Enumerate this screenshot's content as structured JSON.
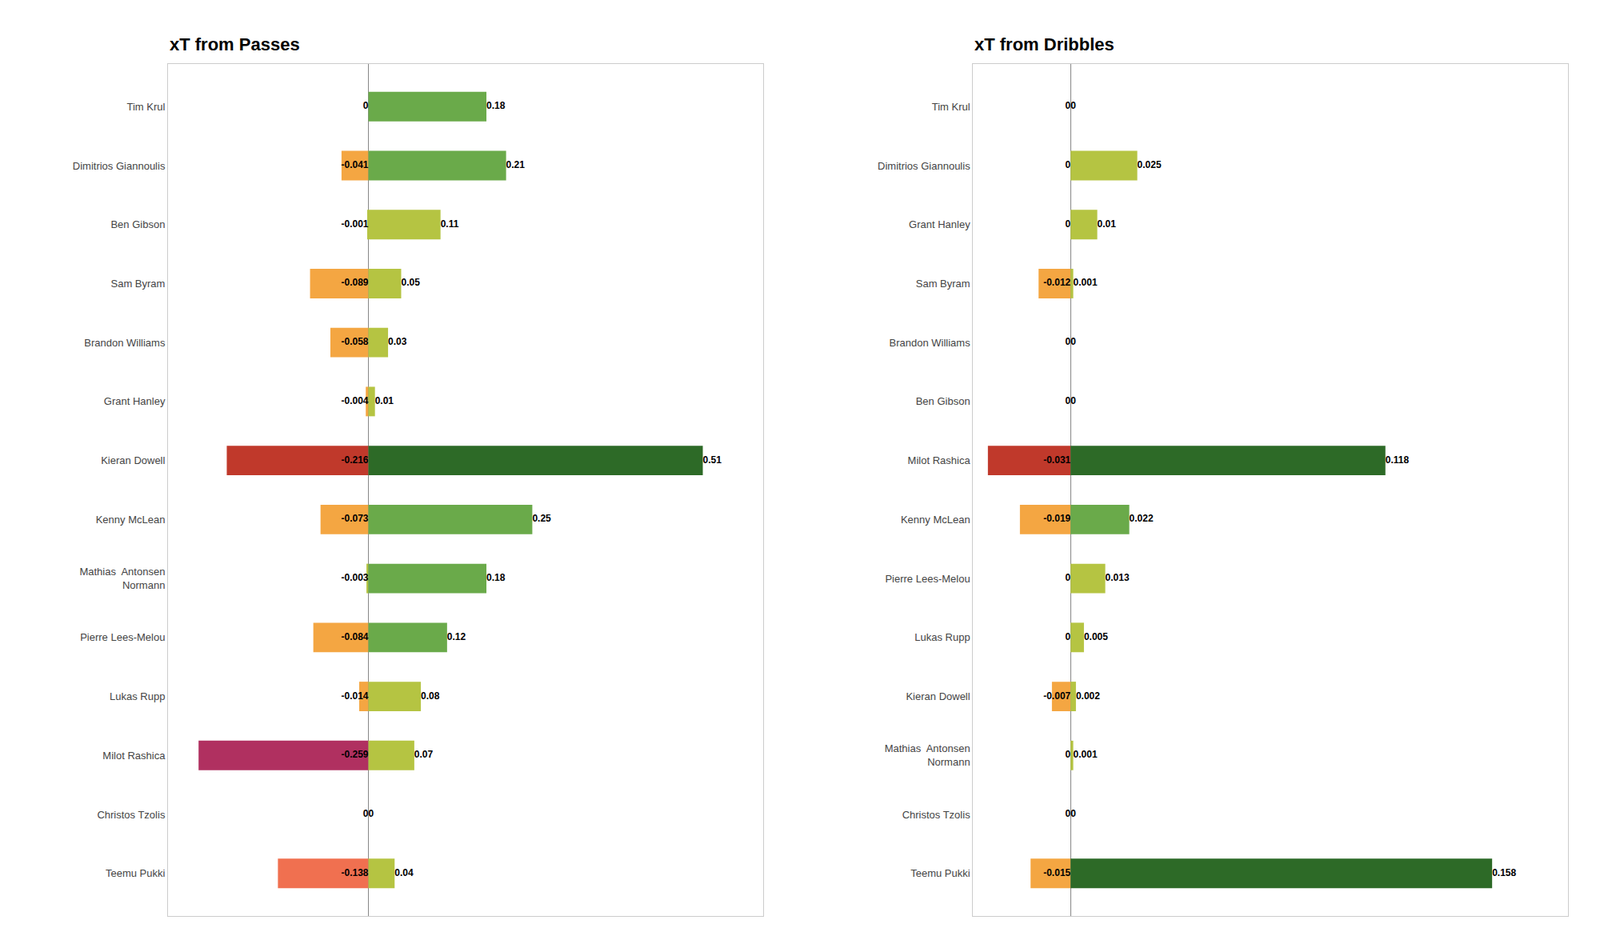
{
  "chart_data": [
    {
      "type": "bar",
      "orientation": "horizontal",
      "title": "xT from Passes",
      "categories": [
        "Tim Krul",
        "Dimitrios Giannoulis",
        "Ben Gibson",
        "Sam Byram",
        "Brandon Williams",
        "Grant Hanley",
        "Kieran Dowell",
        "Kenny McLean",
        "Mathias  Antonsen\nNormann",
        "Pierre Lees-Melou",
        "Lukas Rupp",
        "Milot Rashica",
        "Christos Tzolis",
        "Teemu Pukki"
      ],
      "series": [
        {
          "values": [
            0,
            -0.041,
            -0.001,
            -0.089,
            -0.058,
            -0.004,
            -0.216,
            -0.073,
            -0.003,
            -0.084,
            -0.014,
            -0.259,
            0,
            -0.138
          ],
          "colors": [
            "#6aaa4a",
            "#f4a642",
            "#b5c442",
            "#f4a642",
            "#f4a642",
            "#f4a642",
            "#c0392b",
            "#f4a642",
            "#b5c442",
            "#f4a642",
            "#f4a642",
            "#b03060",
            "#6aaa4a",
            "#f07050"
          ]
        },
        {
          "values": [
            0.18,
            0.21,
            0.11,
            0.05,
            0.03,
            0.01,
            0.51,
            0.25,
            0.18,
            0.12,
            0.08,
            0.07,
            0,
            0.04
          ],
          "colors": [
            "#6aaa4a",
            "#6aaa4a",
            "#b5c442",
            "#b5c442",
            "#b5c442",
            "#b5c442",
            "#2d6a27",
            "#6aaa4a",
            "#6aaa4a",
            "#6aaa4a",
            "#b5c442",
            "#b5c442",
            "#b5c442",
            "#b5c442"
          ]
        }
      ],
      "xlim": [
        -0.30562,
        0.6018
      ],
      "data_labels": true,
      "tick_labels": "y",
      "grid": false
    },
    {
      "type": "bar",
      "orientation": "horizontal",
      "title": "xT from Dribbles",
      "categories": [
        "Tim Krul",
        "Dimitrios Giannoulis",
        "Grant Hanley",
        "Sam Byram",
        "Brandon Williams",
        "Ben Gibson",
        "Milot Rashica",
        "Kenny McLean",
        "Pierre Lees-Melou",
        "Lukas Rupp",
        "Kieran Dowell",
        "Mathias  Antonsen\nNormann",
        "Christos Tzolis",
        "Teemu Pukki"
      ],
      "series": [
        {
          "values": [
            0,
            0,
            0,
            -0.012,
            0,
            0,
            -0.031,
            -0.019,
            0,
            0,
            -0.007,
            0,
            0,
            -0.015
          ],
          "colors": [
            "#6aaa4a",
            "#6aaa4a",
            "#6aaa4a",
            "#f4a642",
            "#6aaa4a",
            "#6aaa4a",
            "#c0392b",
            "#f4a642",
            "#6aaa4a",
            "#6aaa4a",
            "#f4a642",
            "#6aaa4a",
            "#6aaa4a",
            "#f4a642"
          ]
        },
        {
          "values": [
            0,
            0.025,
            0.01,
            0.001,
            0,
            0,
            0.118,
            0.022,
            0.013,
            0.005,
            0.002,
            0.001,
            0,
            0.158
          ],
          "colors": [
            "#6aaa4a",
            "#b5c442",
            "#b5c442",
            "#b5c442",
            "#6aaa4a",
            "#6aaa4a",
            "#2d6a27",
            "#6aaa4a",
            "#b5c442",
            "#b5c442",
            "#b5c442",
            "#b5c442",
            "#6aaa4a",
            "#2d6a27"
          ]
        }
      ],
      "xlim": [
        -0.03658,
        0.18644
      ],
      "data_labels": true,
      "tick_labels": "y",
      "grid": false
    }
  ]
}
